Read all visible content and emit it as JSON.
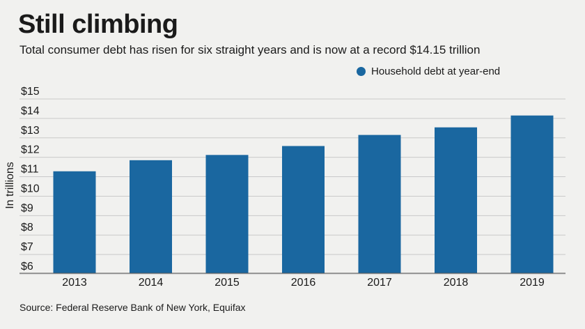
{
  "header": {
    "title": "Still climbing",
    "subtitle": "Total consumer debt has risen for six straight years and is now at a record $14.15 trillion"
  },
  "footer": {
    "source": "Source: Federal Reserve Bank of New York, Equifax"
  },
  "colors": {
    "bar": "#1a67a0",
    "gridline": "#c9c9c9",
    "background": "#f1f1ef"
  },
  "chart_data": {
    "type": "bar",
    "categories": [
      "2013",
      "2014",
      "2015",
      "2016",
      "2017",
      "2018",
      "2019"
    ],
    "series": [
      {
        "name": "Household debt at year-end",
        "values": [
          11.28,
          11.85,
          12.12,
          12.58,
          13.15,
          13.54,
          14.15
        ]
      }
    ],
    "ylabel": "In trillions",
    "ylim": [
      6,
      15
    ],
    "yticks": [
      6,
      7,
      8,
      9,
      10,
      11,
      12,
      13,
      14,
      15
    ],
    "ytick_labels": [
      "$6",
      "$7",
      "$8",
      "$9",
      "$10",
      "$11",
      "$12",
      "$13",
      "$14",
      "$15"
    ],
    "grid": true,
    "legend_position": "top-right"
  }
}
